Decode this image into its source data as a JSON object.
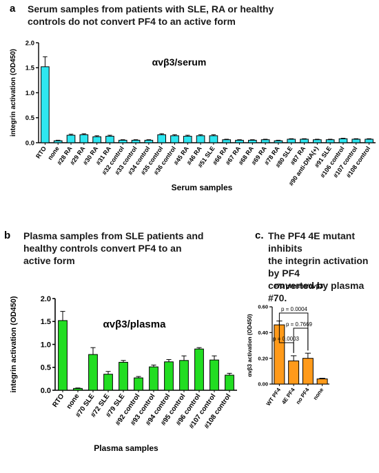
{
  "panels": {
    "a": {
      "letter": "a",
      "title_line1": "Serum samples from patients with SLE, RA or healthy",
      "title_line2": "controls do not convert PF4 to an active form"
    },
    "b": {
      "letter": "b",
      "title_line1": "Plasma samples from SLE patients and",
      "title_line2": "healthy controls convert PF4 to an",
      "title_line3": "active form"
    },
    "c": {
      "letter": "c.",
      "title_line1": "The PF4 4E mutant inhibits",
      "title_line2": "the integrin activation by PF4",
      "title_line3": "converted by plasma #70."
    }
  },
  "chart_data": [
    {
      "id": "a",
      "type": "bar",
      "title": "αvβ3/serum",
      "xlabel": "Serum samples",
      "ylabel": "integrin activation (OD450)",
      "ylim": [
        0,
        2.0
      ],
      "yticks": [
        "0.0",
        "0.5",
        "1.0",
        "1.5",
        "2.0"
      ],
      "bar_color": "#2ee6f0",
      "categories": [
        "RTO",
        "none",
        "#28 RA",
        "#29 RA",
        "#30 RA",
        "#31 RA",
        "#32 control",
        "#33 control",
        "#34 control",
        "#35 control",
        "#36 control",
        "#45 RA",
        "#46 RA",
        "#51 SLE",
        "#66 RA",
        "#67 RA",
        "#68 RA",
        "#69 RA",
        "#78 RA",
        "#80 SLE",
        "#87 RA",
        "#90 anti-DNA(+)",
        "#91 SLE",
        "#106 control",
        "#107 control",
        "#108 control"
      ],
      "values": [
        1.52,
        0.04,
        0.15,
        0.16,
        0.12,
        0.13,
        0.05,
        0.05,
        0.05,
        0.16,
        0.14,
        0.13,
        0.14,
        0.14,
        0.06,
        0.05,
        0.05,
        0.06,
        0.04,
        0.07,
        0.07,
        0.06,
        0.06,
        0.08,
        0.07,
        0.07
      ],
      "errors": [
        0.2,
        0.01,
        0.02,
        0.02,
        0.02,
        0.02,
        0.01,
        0.01,
        0.01,
        0.02,
        0.02,
        0.02,
        0.02,
        0.02,
        0.01,
        0.01,
        0.01,
        0.01,
        0.01,
        0.01,
        0.01,
        0.01,
        0.01,
        0.01,
        0.01,
        0.01
      ]
    },
    {
      "id": "b",
      "type": "bar",
      "title": "αvβ3/plasma",
      "xlabel": "Plasma samples",
      "ylabel": "integrin activation (OD450)",
      "ylim": [
        0,
        2.0
      ],
      "yticks": [
        "0.0",
        "0.5",
        "1.0",
        "1.5",
        "2.0"
      ],
      "bar_color": "#22dd22",
      "categories": [
        "RTO",
        "none",
        "#70 SLE",
        "#72 SLE",
        "#79 SLE",
        "#92 control",
        "#93 control",
        "#94 control",
        "#95 control",
        "#96 control",
        "#107 control",
        "#108 control"
      ],
      "values": [
        1.52,
        0.04,
        0.78,
        0.35,
        0.61,
        0.27,
        0.51,
        0.62,
        0.65,
        0.9,
        0.66,
        0.33
      ],
      "errors": [
        0.2,
        0.01,
        0.15,
        0.06,
        0.04,
        0.03,
        0.04,
        0.05,
        0.1,
        0.03,
        0.09,
        0.04
      ]
    },
    {
      "id": "c",
      "type": "bar",
      "title": "#70 plasma/αvβ3",
      "xlabel": "",
      "ylabel": "αvβ3 activation (OD450)",
      "ylim": [
        0,
        0.6
      ],
      "yticks": [
        "0.00",
        "0.20",
        "0.40",
        "0.60"
      ],
      "bar_color": "#ff9a1a",
      "categories": [
        "WT PF4",
        "4E PF4",
        "no PF4",
        "none"
      ],
      "values": [
        0.46,
        0.18,
        0.2,
        0.04
      ],
      "errors": [
        0.03,
        0.04,
        0.04,
        0.005
      ],
      "annotations": [
        "p = 0.0003",
        "p = 0.7669",
        "p = 0.0004"
      ]
    }
  ]
}
